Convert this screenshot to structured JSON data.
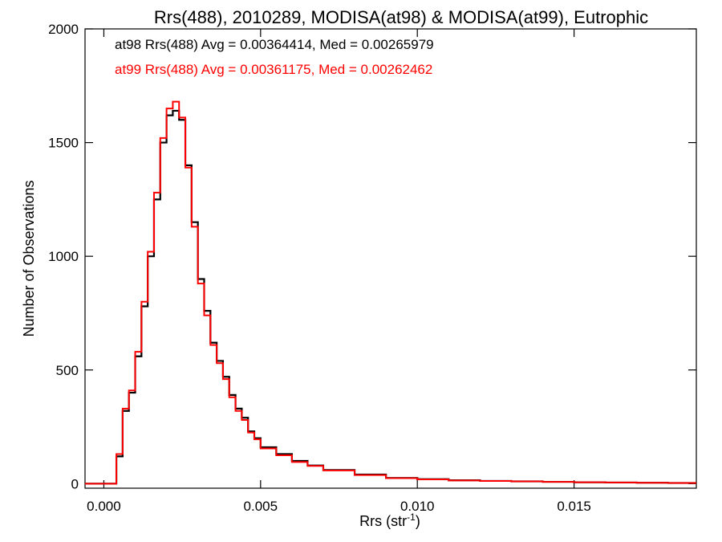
{
  "chart_data": {
    "type": "line",
    "style": "step histogram",
    "title": "Rrs(488), 2010289, MODISA(at98) & MODISA(at99), Eutrophic",
    "xlabel": "Rrs (str",
    "xlabel_sup": "-1",
    "xlabel_end": ")",
    "ylabel": "Number of Observations",
    "xlim": [
      -0.0006,
      0.0189
    ],
    "ylim": [
      -20,
      2000
    ],
    "x_ticks": [
      0.0,
      0.005,
      0.01,
      0.015
    ],
    "x_tick_labels": [
      "0.000",
      "0.005",
      "0.010",
      "0.015"
    ],
    "y_ticks": [
      0,
      500,
      1000,
      1500,
      2000
    ],
    "y_tick_labels": [
      "0",
      "500",
      "1000",
      "1500",
      "2000"
    ],
    "grid": false,
    "legend": "top-left, text annotations",
    "annotations": [
      {
        "text": "at98 Rrs(488) Avg = 0.00364414, Med = 0.00265979",
        "color": "#000000"
      },
      {
        "text": "at99 Rrs(488) Avg = 0.00361175, Med = 0.00262462",
        "color": "#ff0000"
      }
    ],
    "series": [
      {
        "color": "#000000",
        "x": [
          -0.0006,
          0.0002,
          0.0004,
          0.0006,
          0.0008,
          0.001,
          0.0012,
          0.0014,
          0.0016,
          0.0018,
          0.002,
          0.0022,
          0.0024,
          0.0026,
          0.0028,
          0.003,
          0.0032,
          0.0034,
          0.0036,
          0.0038,
          0.004,
          0.0042,
          0.0044,
          0.0046,
          0.0048,
          0.005,
          0.0055,
          0.006,
          0.0065,
          0.007,
          0.008,
          0.009,
          0.01,
          0.011,
          0.012,
          0.013,
          0.014,
          0.015,
          0.016,
          0.017,
          0.018,
          0.0189
        ],
        "y": [
          0,
          0,
          120,
          320,
          400,
          560,
          780,
          1000,
          1250,
          1500,
          1620,
          1640,
          1600,
          1400,
          1150,
          900,
          760,
          620,
          540,
          470,
          390,
          330,
          290,
          230,
          200,
          160,
          130,
          100,
          80,
          60,
          40,
          25,
          20,
          15,
          12,
          10,
          8,
          6,
          5,
          4,
          3,
          3
        ]
      },
      {
        "color": "#ff0000",
        "x": [
          -0.0006,
          0.0002,
          0.0004,
          0.0006,
          0.0008,
          0.001,
          0.0012,
          0.0014,
          0.0016,
          0.0018,
          0.002,
          0.0022,
          0.0024,
          0.0026,
          0.0028,
          0.003,
          0.0032,
          0.0034,
          0.0036,
          0.0038,
          0.004,
          0.0042,
          0.0044,
          0.0046,
          0.0048,
          0.005,
          0.0055,
          0.006,
          0.0065,
          0.007,
          0.008,
          0.009,
          0.01,
          0.011,
          0.012,
          0.013,
          0.014,
          0.015,
          0.016,
          0.017,
          0.018,
          0.0189
        ],
        "y": [
          0,
          0,
          130,
          330,
          410,
          580,
          800,
          1020,
          1280,
          1520,
          1650,
          1680,
          1610,
          1390,
          1130,
          880,
          740,
          610,
          530,
          460,
          380,
          320,
          280,
          225,
          195,
          155,
          125,
          95,
          78,
          58,
          38,
          24,
          19,
          14,
          12,
          10,
          8,
          6,
          5,
          4,
          3,
          3
        ]
      }
    ]
  }
}
